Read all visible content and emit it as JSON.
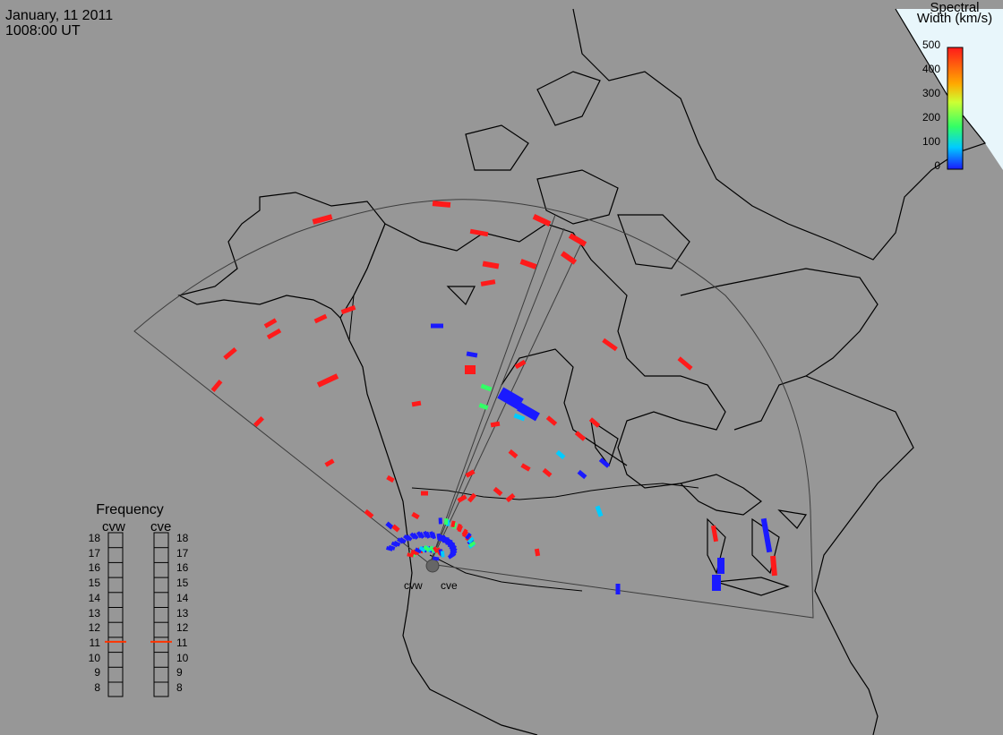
{
  "header": {
    "date": "January, 11 2011",
    "time": "1008:00 UT"
  },
  "colorbar": {
    "title_line1": "Spectral",
    "title_line2": "Width (km/s)",
    "ticks": [
      "500",
      "400",
      "300",
      "200",
      "100",
      "0"
    ],
    "min": 0,
    "max": 500
  },
  "frequency": {
    "title": "Frequency",
    "radars": [
      "cvw",
      "cve"
    ],
    "scale": [
      "18",
      "17",
      "16",
      "15",
      "14",
      "13",
      "12",
      "11",
      "10",
      "9",
      "8"
    ],
    "cvw_value": 10.7,
    "cve_value": 10.7
  },
  "radars": {
    "west_label": "cvw",
    "east_label": "cve"
  },
  "colors": {
    "background": "#979797",
    "high": "#ff1a1a",
    "low": "#1a1aff",
    "mid_cyan": "#00ccff",
    "mid_green": "#33ff66",
    "frequency_marker": "#ff3300"
  }
}
